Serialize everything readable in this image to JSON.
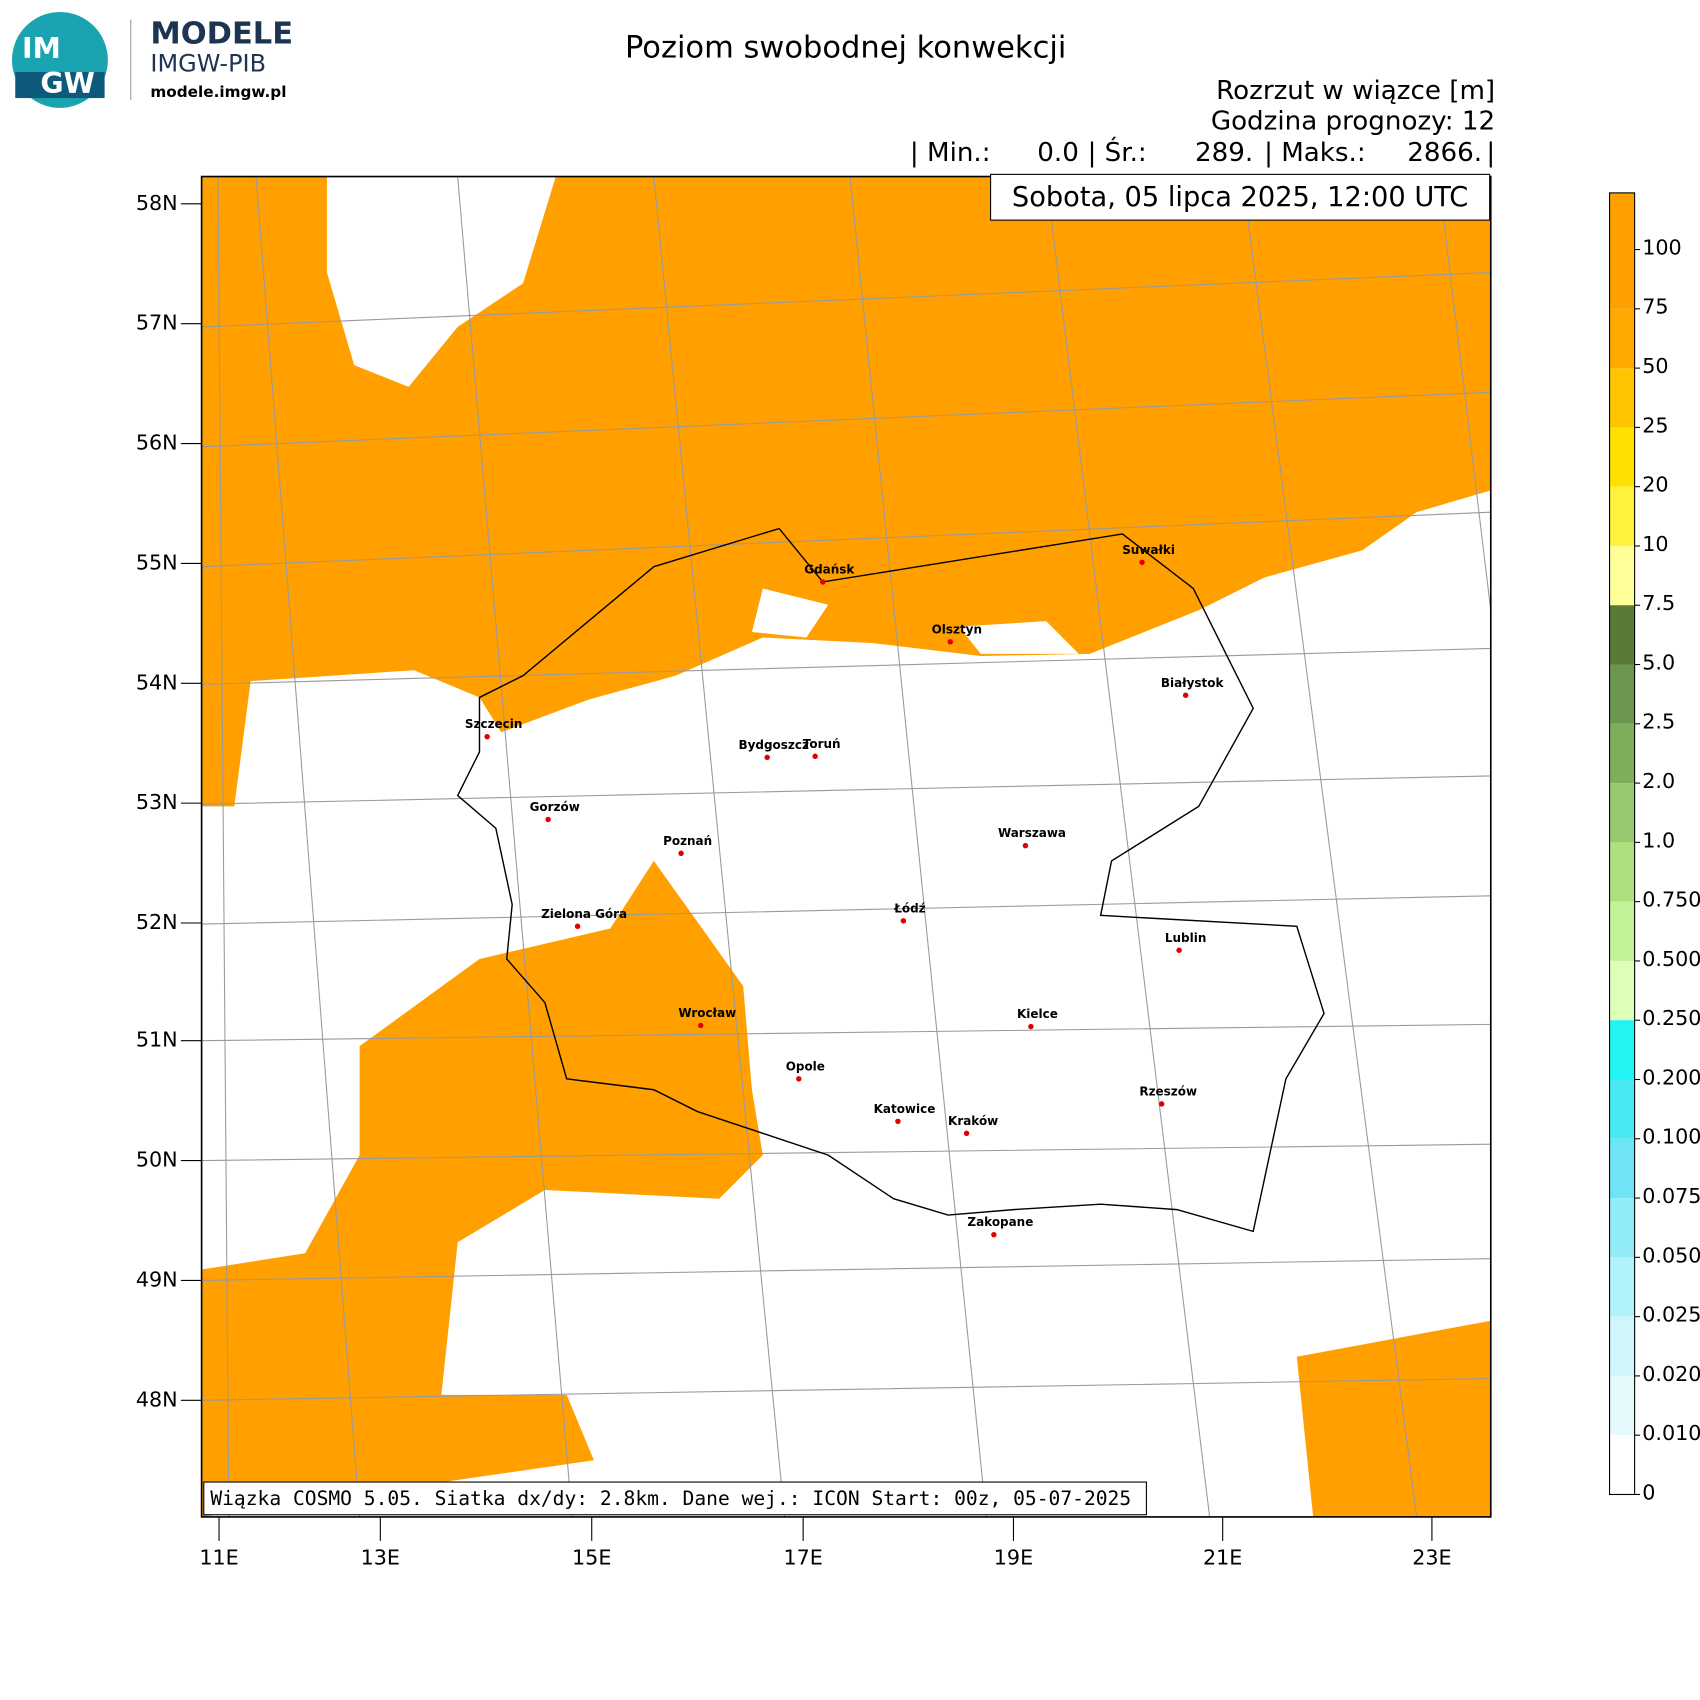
{
  "header": {
    "logo_top": "IM",
    "logo_bottom": "GW",
    "brand": "MODELE",
    "org": "IMGW-PIB",
    "url": "modele.imgw.pl"
  },
  "title": "Poziom swobodnej konwekcji",
  "variable": "Rozrzut w wiązce [m]",
  "forecast_hour": "Godzina prognozy: 12",
  "stats": [
    "| Min.:",
    "0.0",
    "| Śr.:",
    "289.",
    "| Maks.:",
    "2866.",
    "|"
  ],
  "valid_time": "Sobota, 05 lipca 2025, 12:00 UTC",
  "footer": "Wiązka COSMO 5.05. Siatka dx/dy: 2.8km. Dane wej.: ICON Start: 00z, 05-07-2025",
  "map": {
    "lat_labels": [
      "58N",
      "57N",
      "56N",
      "55N",
      "54N",
      "53N",
      "52N",
      "51N",
      "50N",
      "49N",
      "48N"
    ],
    "lon_labels": [
      "11E",
      "13E",
      "15E",
      "17E",
      "19E",
      "21E",
      "23E"
    ],
    "cities": [
      "Gdańsk",
      "Suwałki",
      "Olsztyn",
      "Białystok",
      "Szczecin",
      "Bydgoszcz",
      "Toruń",
      "Gorzów",
      "Warszawa",
      "Poznań",
      "Łódź",
      "Zielona Góra",
      "Lublin",
      "Wrocław",
      "Kielce",
      "Opole",
      "Rzeszów",
      "Katowice",
      "Kraków",
      "Zakopane"
    ]
  },
  "legend": {
    "labels": [
      "100",
      "75",
      "50",
      "25",
      "20",
      "10",
      "7.5",
      "5.0",
      "2.5",
      "2.0",
      "1.0",
      "0.750",
      "0.500",
      "0.250",
      "0.200",
      "0.100",
      "0.075",
      "0.050",
      "0.025",
      "0.020",
      "0.010",
      "0"
    ],
    "colors": [
      "#ff9f00",
      "#ff9f00",
      "#ffa800",
      "#ffc400",
      "#ffe000",
      "#fff23a",
      "#ffff9a",
      "#5a7a38",
      "#6c9650",
      "#7eae5c",
      "#96c86e",
      "#ace07c",
      "#c4f296",
      "#ddffb8",
      "#22f4f4",
      "#4ae8f2",
      "#6ee4f4",
      "#92ecf8",
      "#b2f2fa",
      "#cef6fb",
      "#e6fafd",
      "#ffffff"
    ]
  }
}
